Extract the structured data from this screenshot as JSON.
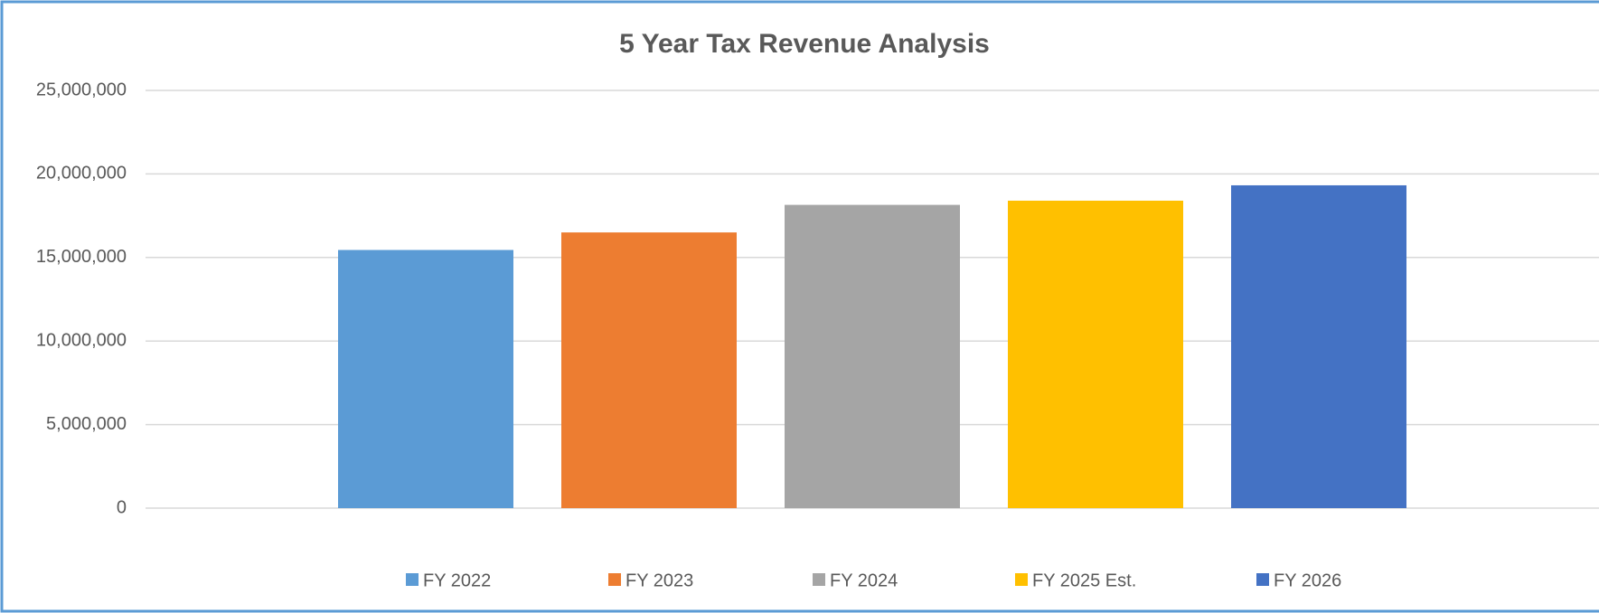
{
  "chart_data": {
    "type": "bar",
    "title": "5 Year Tax Revenue Analysis",
    "categories": [
      null
    ],
    "series": [
      {
        "name": "FY 2022",
        "color": "#5b9bd5",
        "values": [
          15450000
        ]
      },
      {
        "name": "FY 2023",
        "color": "#ed7d31",
        "values": [
          16500000
        ]
      },
      {
        "name": "FY 2024",
        "color": "#a5a5a5",
        "values": [
          18150000
        ]
      },
      {
        "name": "FY 2025 Est.",
        "color": "#ffc000",
        "values": [
          18400000
        ]
      },
      {
        "name": "FY 2026",
        "color": "#4472c4",
        "values": [
          19320000
        ]
      }
    ],
    "ylim": [
      0,
      25000000
    ],
    "yticks": [
      0,
      {
        "value": 5000000,
        "label": "5,000,000"
      },
      {
        "value": 10000000,
        "label": "10,000,000"
      },
      {
        "value": 15000000,
        "label": "15,000,000"
      },
      {
        "value": 20000000,
        "label": "20,000,000"
      },
      {
        "value": 25000000,
        "label": "25,000,000"
      }
    ],
    "grid": true,
    "legend": "bottom"
  }
}
